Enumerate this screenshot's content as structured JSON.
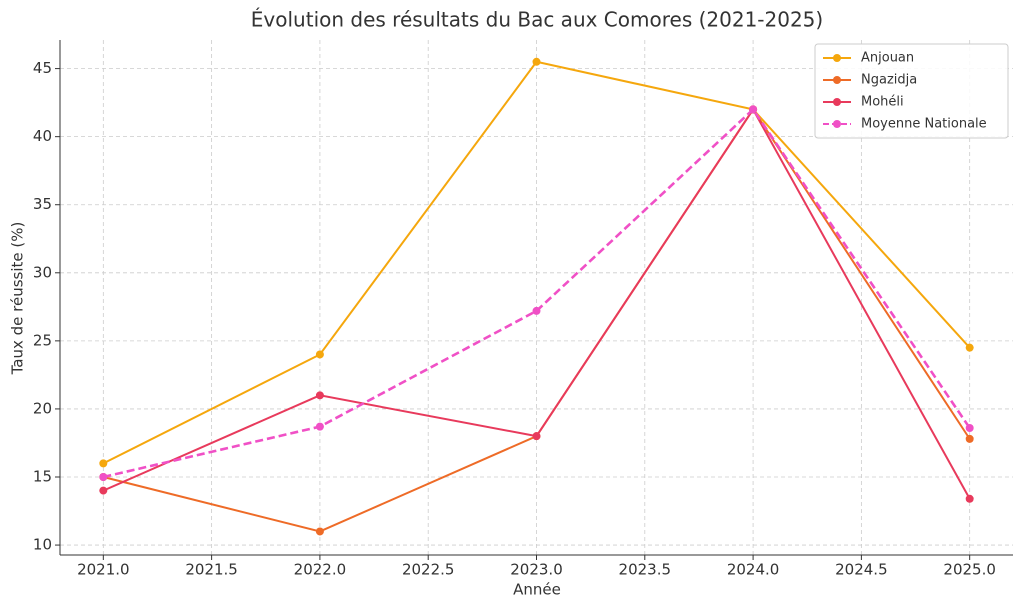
{
  "chart_data": {
    "type": "line",
    "title": "Évolution des résultats du Bac aux Comores (2021-2025)",
    "xlabel": "Année",
    "ylabel": "Taux de réussite (%)",
    "x": [
      2021,
      2022,
      2023,
      2024,
      2025
    ],
    "series": [
      {
        "name": "Anjouan",
        "color": "#f5a70d",
        "linestyle": "solid",
        "values": [
          16,
          24,
          45.5,
          42,
          24.5
        ]
      },
      {
        "name": "Ngazidja",
        "color": "#ee6b27",
        "linestyle": "solid",
        "values": [
          15,
          11,
          18,
          42,
          17.8
        ]
      },
      {
        "name": "Mohéli",
        "color": "#e83a5c",
        "linestyle": "solid",
        "values": [
          14,
          21,
          18,
          42,
          13.4
        ]
      },
      {
        "name": "Moyenne Nationale",
        "color": "#f050c6",
        "linestyle": "dashed",
        "values": [
          15,
          18.7,
          27.2,
          42,
          18.6
        ]
      }
    ],
    "xlim": [
      2020.8,
      2025.2
    ],
    "xticks": [
      {
        "value": 2021,
        "label": "2021.0"
      },
      {
        "value": 2021.5,
        "label": "2021.5"
      },
      {
        "value": 2022,
        "label": "2022.0"
      },
      {
        "value": 2022.5,
        "label": "2022.5"
      },
      {
        "value": 2023,
        "label": "2023.0"
      },
      {
        "value": 2023.5,
        "label": "2023.5"
      },
      {
        "value": 2024,
        "label": "2024.0"
      },
      {
        "value": 2024.5,
        "label": "2024.5"
      },
      {
        "value": 2025,
        "label": "2025.0"
      }
    ],
    "ylim": [
      9.27,
      47.1
    ],
    "yticks": [
      10,
      15,
      20,
      25,
      30,
      35,
      40,
      45
    ],
    "grid": true,
    "legend": "upper right"
  }
}
